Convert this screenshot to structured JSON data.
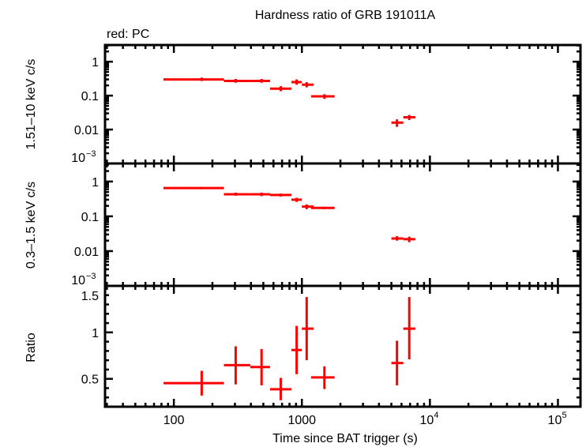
{
  "chart_data": {
    "type": "scatter",
    "title": "Hardness ratio of GRB 191011A",
    "legend_note": "red: PC",
    "xlabel": "Time since BAT trigger (s)",
    "x_scale": "log",
    "xlim": [
      29,
      150000
    ],
    "x_ticks": [
      {
        "v": 100,
        "label": "100"
      },
      {
        "v": 1000,
        "label": "1000"
      },
      {
        "v": 10000,
        "label": "10",
        "exp": "4"
      },
      {
        "v": 100000,
        "label": "10",
        "exp": "5"
      }
    ],
    "series_color": "#ff0000",
    "x": [
      165,
      304,
      484,
      684,
      910,
      1090,
      1500,
      5530,
      6900
    ],
    "x_low": [
      83,
      246,
      395,
      564,
      828,
      1000,
      1180,
      5000,
      6200
    ],
    "x_high": [
      246,
      395,
      564,
      828,
      1000,
      1233,
      1800,
      6200,
      7700
    ],
    "panels": [
      {
        "ylabel": "1.51–10 keV c/s",
        "y_scale": "log",
        "ylim": [
          0.001,
          3.1
        ],
        "y_ticks": [
          {
            "v": 1,
            "label": "1"
          },
          {
            "v": 0.1,
            "label": "0.1"
          },
          {
            "v": 0.01,
            "label": "0.01"
          },
          {
            "v": 0.001,
            "label": "10",
            "exp": "−3"
          }
        ],
        "y": [
          0.3,
          0.27,
          0.27,
          0.16,
          0.25,
          0.21,
          0.095,
          0.016,
          0.023
        ],
        "y_low": [
          0.27,
          0.24,
          0.24,
          0.135,
          0.21,
          0.175,
          0.08,
          0.012,
          0.019
        ],
        "y_high": [
          0.34,
          0.31,
          0.31,
          0.19,
          0.3,
          0.25,
          0.11,
          0.02,
          0.027
        ]
      },
      {
        "ylabel": "0.3–1.5 keV c/s",
        "y_scale": "log",
        "ylim": [
          0.001,
          3.3
        ],
        "y_ticks": [
          {
            "v": 1,
            "label": "1"
          },
          {
            "v": 0.1,
            "label": "0.1"
          },
          {
            "v": 0.01,
            "label": "0.01"
          },
          {
            "v": 0.001,
            "label": "10",
            "exp": "−3"
          }
        ],
        "y": [
          0.65,
          0.43,
          0.43,
          0.41,
          0.3,
          0.19,
          0.175,
          0.023,
          0.022
        ],
        "y_low": [
          0.6,
          0.39,
          0.38,
          0.37,
          0.26,
          0.16,
          0.16,
          0.02,
          0.018
        ],
        "y_high": [
          0.7,
          0.48,
          0.48,
          0.45,
          0.34,
          0.22,
          0.19,
          0.027,
          0.026
        ]
      },
      {
        "ylabel": "Ratio",
        "y_scale": "linear",
        "ylim": [
          0.2,
          1.5
        ],
        "y_ticks": [
          {
            "v": 1.5,
            "label": "1.5"
          },
          {
            "v": 1,
            "label": "1"
          },
          {
            "v": 0.5,
            "label": "0.5"
          }
        ],
        "y": [
          0.454,
          0.647,
          0.627,
          0.388,
          0.81,
          1.04,
          0.515,
          0.67,
          1.04
        ],
        "y_low": [
          0.32,
          0.44,
          0.43,
          0.27,
          0.55,
          0.7,
          0.39,
          0.43,
          0.71
        ],
        "y_high": [
          0.586,
          0.85,
          0.82,
          0.51,
          1.07,
          1.38,
          0.635,
          0.91,
          1.38
        ]
      }
    ]
  }
}
